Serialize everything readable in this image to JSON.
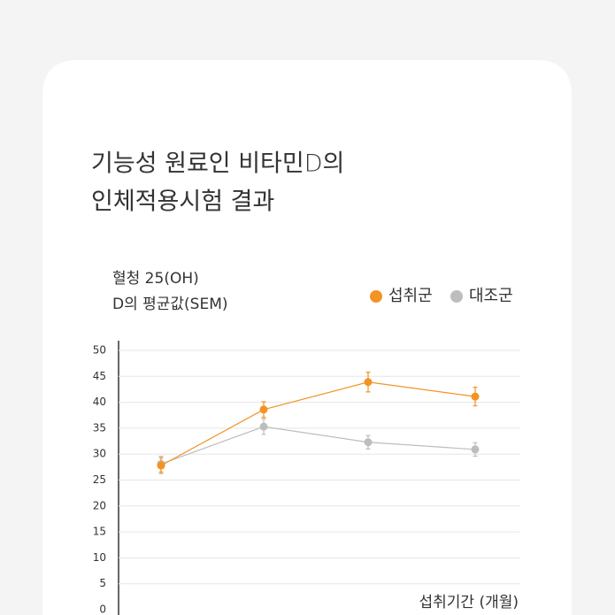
{
  "chart_data": {
    "type": "line",
    "title_lines": [
      "기능성 원료인 비타민D의",
      "인체적용시험 결과"
    ],
    "y_label_lines": [
      "혈청 25(OH)",
      "D의 평균값(SEM)"
    ],
    "x_label": "섭취기간 (개월)",
    "categories": [
      null,
      null,
      null,
      null
    ],
    "series": [
      {
        "name": "섭취군",
        "color": "#f39324",
        "values": [
          27.8,
          38.6,
          43.9,
          41.1
        ],
        "errors": [
          1.5,
          1.5,
          1.9,
          1.8
        ]
      },
      {
        "name": "대조군",
        "color": "#bdbdbd",
        "values": [
          28.1,
          35.3,
          32.3,
          30.9
        ],
        "errors": [
          1.5,
          1.5,
          1.3,
          1.3
        ]
      }
    ],
    "ylim": [
      0,
      50
    ],
    "yticks": [
      0,
      5,
      10,
      15,
      20,
      25,
      30,
      35,
      40,
      45,
      50
    ],
    "grid": true
  }
}
